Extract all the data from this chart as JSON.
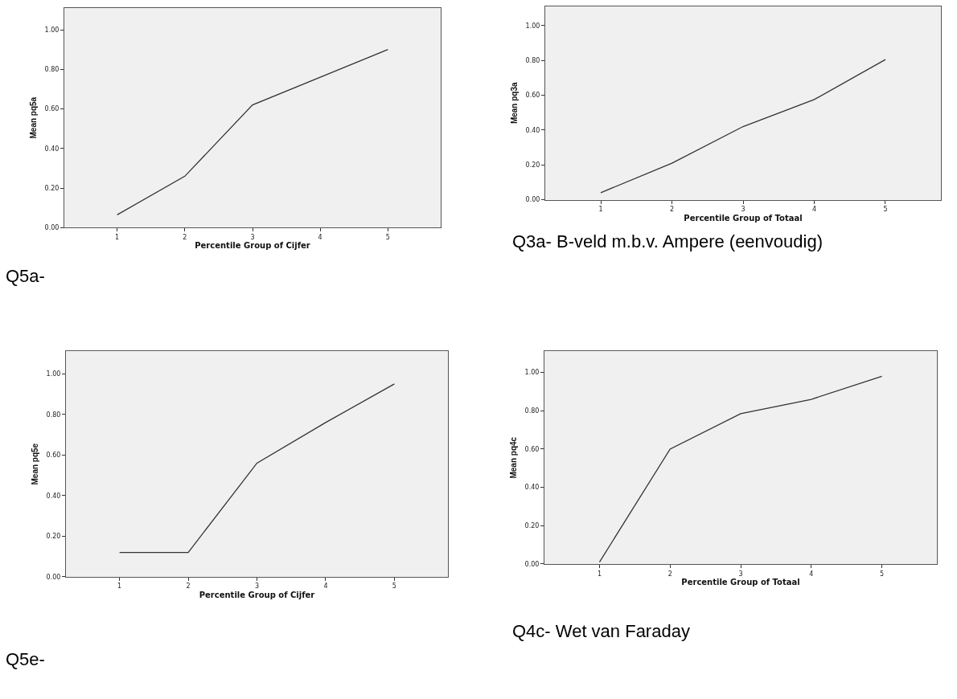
{
  "chart_data": [
    {
      "type": "line",
      "x": [
        1,
        2,
        3,
        4,
        5
      ],
      "values": [
        0.065,
        0.26,
        0.62,
        0.76,
        0.9
      ],
      "color": "#333333",
      "marker": "none",
      "xlim": [
        0.22,
        5.78
      ],
      "xticks": [
        1,
        2,
        3,
        4,
        5
      ],
      "ylim": [
        0,
        1.11
      ],
      "yticks": [
        {
          "value": 0,
          "label": "0.00"
        },
        {
          "value": 0.2,
          "label": "0.20"
        },
        {
          "value": 0.4,
          "label": "0.40"
        },
        {
          "value": 0.6,
          "label": "0.60"
        },
        {
          "value": 0.8,
          "label": "0.80"
        },
        {
          "value": 1,
          "label": "1.00"
        }
      ],
      "xlabel": "Percentile Group of Cijfer",
      "ylabel": "Mean pq5a",
      "annotations": [
        "Q5a-"
      ]
    },
    {
      "type": "line",
      "x": [
        1,
        2,
        3,
        4,
        5
      ],
      "values": [
        0.04,
        0.21,
        0.42,
        0.575,
        0.805
      ],
      "color": "#333333",
      "marker": "none",
      "xlim": [
        0.22,
        5.78
      ],
      "xticks": [
        1,
        2,
        3,
        4,
        5
      ],
      "ylim": [
        0,
        1.11
      ],
      "yticks": [
        {
          "value": 0,
          "label": "0.00"
        },
        {
          "value": 0.2,
          "label": "0.20"
        },
        {
          "value": 0.4,
          "label": "0.40"
        },
        {
          "value": 0.6,
          "label": "0.60"
        },
        {
          "value": 0.8,
          "label": "0.80"
        },
        {
          "value": 1,
          "label": "1.00"
        }
      ],
      "xlabel": "Percentile Group of Totaal",
      "ylabel": "Mean pq3a",
      "annotations": [
        "Q3a- B-veld m.b.v. Ampere (eenvoudig)"
      ]
    },
    {
      "type": "line",
      "x": [
        1,
        2,
        3,
        4,
        5
      ],
      "values": [
        0.12,
        0.12,
        0.56,
        0.76,
        0.95
      ],
      "color": "#333333",
      "marker": "none",
      "xlim": [
        0.22,
        5.78
      ],
      "xticks": [
        1,
        2,
        3,
        4,
        5
      ],
      "ylim": [
        0,
        1.11
      ],
      "yticks": [
        {
          "value": 0,
          "label": "0.00"
        },
        {
          "value": 0.2,
          "label": "0.20"
        },
        {
          "value": 0.4,
          "label": "0.40"
        },
        {
          "value": 0.6,
          "label": "0.60"
        },
        {
          "value": 0.8,
          "label": "0.80"
        },
        {
          "value": 1,
          "label": "1.00"
        }
      ],
      "xlabel": "Percentile Group of Cijfer",
      "ylabel": "Mean pq5e",
      "annotations": [
        "Q5e-"
      ]
    },
    {
      "type": "line",
      "x": [
        1,
        2,
        3,
        4,
        5
      ],
      "values": [
        0.01,
        0.6,
        0.785,
        0.86,
        0.98
      ],
      "color": "#333333",
      "marker": "none",
      "xlim": [
        0.22,
        5.78
      ],
      "xticks": [
        1,
        2,
        3,
        4,
        5
      ],
      "ylim": [
        0,
        1.11
      ],
      "yticks": [
        {
          "value": 0,
          "label": "0.00"
        },
        {
          "value": 0.2,
          "label": "0.20"
        },
        {
          "value": 0.4,
          "label": "0.40"
        },
        {
          "value": 0.6,
          "label": "0.60"
        },
        {
          "value": 0.8,
          "label": "0.80"
        },
        {
          "value": 1,
          "label": "1.00"
        }
      ],
      "xlabel": "Percentile Group of Totaal",
      "ylabel": "Mean pq4c",
      "annotations": [
        "Q4c- Wet van Faraday"
      ]
    }
  ]
}
